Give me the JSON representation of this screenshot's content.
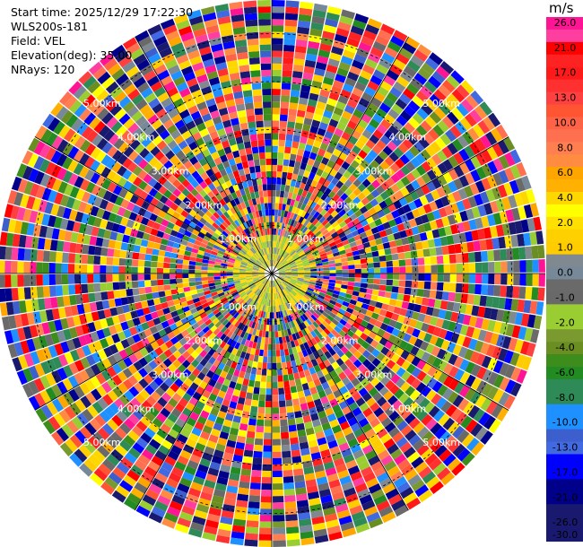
{
  "header": {
    "start_time": "Start time: 2025/12/29 17:22:30",
    "device": "WLS200s-181",
    "field": "Field: VEL",
    "elevation": "Elevation(deg): 35.00",
    "nrays": "NRays: 120"
  },
  "colorbar": {
    "unit": "m/s",
    "bands": [
      {
        "label": "26.0",
        "color": "#ff1493"
      },
      {
        "label": "",
        "color": "#ff3fa0"
      },
      {
        "label": "21.0",
        "color": "#ff0000"
      },
      {
        "label": "",
        "color": "#ff2222"
      },
      {
        "label": "17.0",
        "color": "#ff1a1a"
      },
      {
        "label": "",
        "color": "#ff3030"
      },
      {
        "label": "13.0",
        "color": "#ff4040"
      },
      {
        "label": "",
        "color": "#ff5533"
      },
      {
        "label": "10.0",
        "color": "#ff6347"
      },
      {
        "label": "",
        "color": "#ff7050"
      },
      {
        "label": "8.0",
        "color": "#ff7f50"
      },
      {
        "label": "",
        "color": "#ff8c40"
      },
      {
        "label": "6.0",
        "color": "#ffa500"
      },
      {
        "label": "",
        "color": "#ffb000"
      },
      {
        "label": "4.0",
        "color": "#ffd700"
      },
      {
        "label": "",
        "color": "#ffff00"
      },
      {
        "label": "2.0",
        "color": "#ffe000"
      },
      {
        "label": "",
        "color": "#ffd000"
      },
      {
        "label": "1.0",
        "color": "#ffcc00"
      },
      {
        "label": "",
        "color": "#808890"
      },
      {
        "label": "0.0",
        "color": "#778899"
      },
      {
        "label": "",
        "color": "#6a6a6a"
      },
      {
        "label": "-1.0",
        "color": "#696969"
      },
      {
        "label": "",
        "color": "#9acd32"
      },
      {
        "label": "-2.0",
        "color": "#9acd32"
      },
      {
        "label": "",
        "color": "#7a9a30"
      },
      {
        "label": "-4.0",
        "color": "#6b8e23"
      },
      {
        "label": "",
        "color": "#3c8d1c"
      },
      {
        "label": "-6.0",
        "color": "#228b22"
      },
      {
        "label": "",
        "color": "#2e8b57"
      },
      {
        "label": "-8.0",
        "color": "#2e8b57"
      },
      {
        "label": "",
        "color": "#1e90ff"
      },
      {
        "label": "-10.0",
        "color": "#1e90ff"
      },
      {
        "label": "",
        "color": "#3c5fcd"
      },
      {
        "label": "-13.0",
        "color": "#4169e1"
      },
      {
        "label": "",
        "color": "#0000ff"
      },
      {
        "label": "-17.0",
        "color": "#0000ff"
      },
      {
        "label": "",
        "color": "#00008b"
      },
      {
        "label": "-21.0",
        "color": "#00008b"
      },
      {
        "label": "",
        "color": "#191970"
      },
      {
        "label": "-26.0",
        "color": "#191970"
      },
      {
        "label": "-30.0",
        "color": "#191970"
      }
    ]
  },
  "chart_data": {
    "type": "heatmap",
    "projection": "polar-ppi",
    "field": "VEL",
    "unit": "m/s",
    "n_rays": 120,
    "range_rings_km": [
      1.0,
      2.0,
      3.0,
      4.0,
      5.0
    ],
    "ring_labels": [
      "1.00km",
      "2.00km",
      "3.00km",
      "4.00km",
      "5.00km"
    ],
    "max_range_km": 5.7,
    "value_range": [
      -30.0,
      30.0
    ],
    "grid": true,
    "colorbar_position": "right"
  }
}
